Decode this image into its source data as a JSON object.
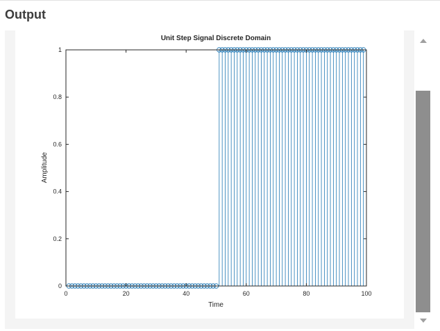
{
  "page": {
    "heading": "Output"
  },
  "chart_data": {
    "type": "stem",
    "title": "Unit Step Signal Discrete Domain",
    "xlabel": "Time",
    "ylabel": "Amplitude",
    "xlim": [
      0,
      100
    ],
    "ylim": [
      0,
      1
    ],
    "x_ticks": [
      "0",
      "20",
      "40",
      "60",
      "80",
      "100"
    ],
    "y_ticks": [
      "0",
      "0.2",
      "0.4",
      "0.6",
      "0.8",
      "1"
    ],
    "x_tick_values": [
      0,
      20,
      40,
      60,
      80,
      100
    ],
    "y_tick_values": [
      0,
      0.2,
      0.4,
      0.6,
      0.8,
      1
    ],
    "series": [
      {
        "x_start": 1,
        "x_end": 99,
        "step_at": 51,
        "value_before": 0,
        "value_after": 1,
        "color": "#1f77b4"
      }
    ],
    "grid": false,
    "legend": "none"
  },
  "colors": {
    "stem": "#1f77b4",
    "axis": "#262626",
    "scroll_thumb": "#8e8e8e",
    "panel": "#f4f4f4"
  },
  "icons": {
    "scroll_up": "triangle-up-icon",
    "scroll_down": "triangle-down-icon"
  }
}
